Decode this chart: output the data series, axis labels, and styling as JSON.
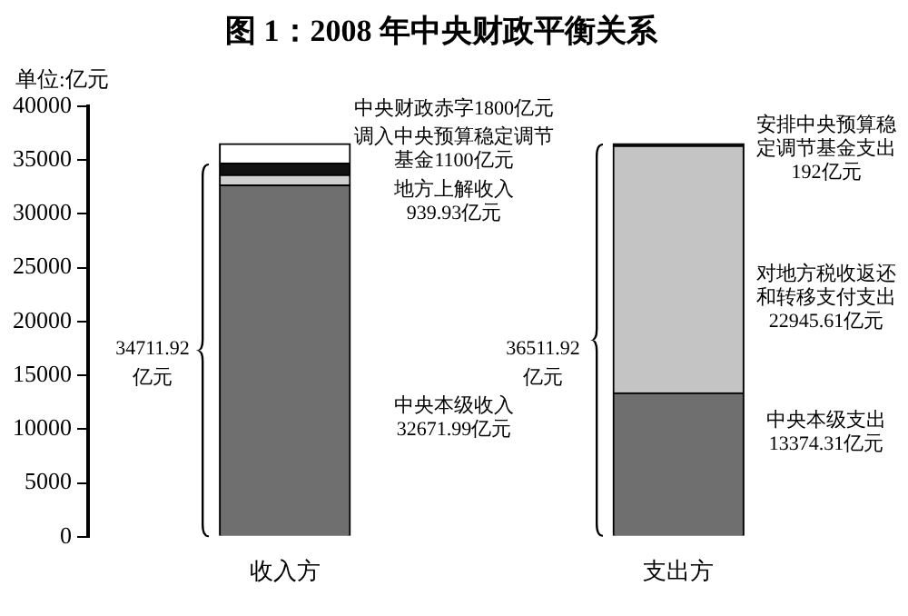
{
  "chart_data": {
    "type": "bar",
    "title": "图 1：2008 年中央财政平衡关系",
    "ylabel": "单位:亿元",
    "categories": [
      "收入方",
      "支出方"
    ],
    "stacked": true,
    "ylim": [
      0,
      40000
    ],
    "yticks": [
      0,
      5000,
      10000,
      15000,
      20000,
      25000,
      30000,
      35000,
      40000
    ],
    "grid": false,
    "legend": false,
    "series": [
      {
        "colors": [
          "#6f6f6f",
          "#6f6f6f"
        ],
        "values": [
          32671.99,
          13374.31
        ]
      },
      {
        "colors": [
          "#d0d0d0",
          "#c4c4c4"
        ],
        "values": [
          939.93,
          22945.61
        ]
      },
      {
        "colors": [
          "#111111",
          "#111111"
        ],
        "values": [
          1100,
          192
        ]
      },
      {
        "colors": [
          "#ffffff",
          "#ffffff"
        ],
        "values": [
          1800,
          null
        ]
      }
    ],
    "annotations": [
      "中央财政赤字1800亿元",
      "调入中央预算稳定调节基金1100亿元",
      "地方上解收入939.93亿元",
      "中央本级收入32671.99亿元",
      "34711.92亿元",
      "安排中央预算稳定调节基金支出192亿元",
      "对地方税收返还和转移支付支出22945.61亿元",
      "中央本级支出13374.31亿元",
      "36511.92亿元"
    ]
  }
}
